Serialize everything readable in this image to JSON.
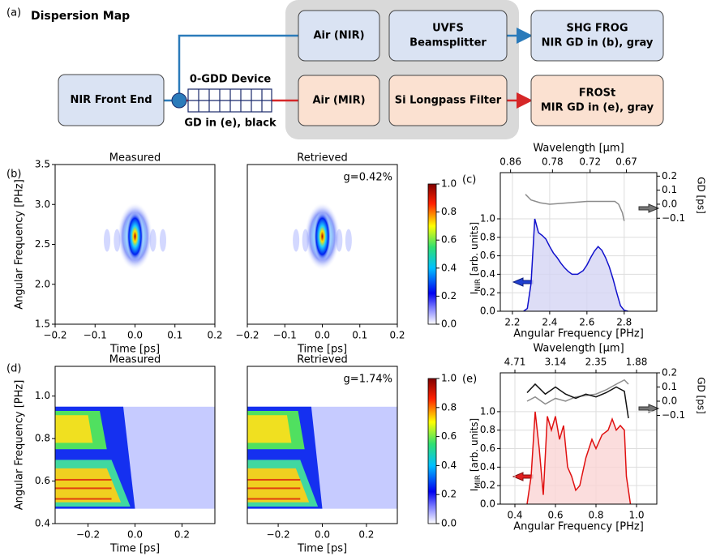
{
  "figure_label": "(a)",
  "title": "Dispersion Map",
  "diagram": {
    "nodes": [
      {
        "label": [
          "NIR Front End"
        ]
      },
      {
        "label": [
          "Air (NIR)"
        ]
      },
      {
        "label": [
          "UVFS",
          "Beamsplitter"
        ]
      },
      {
        "label": [
          "SHG FROG",
          "NIR GD in (b), gray"
        ]
      },
      {
        "label": [
          "Air (MIR)"
        ]
      },
      {
        "label": [
          "Si Longpass Filter"
        ]
      },
      {
        "label": [
          "FROSt",
          "MIR GD in (e), gray"
        ]
      }
    ],
    "device": {
      "label": "0-GDD Device",
      "caption": "GD in (e), black"
    }
  },
  "chart_data": [
    {
      "type": "heatmap",
      "panel": "(b)",
      "title": "Measured",
      "xlabel": "Time [ps]",
      "ylabel": "Angular Frequency [PHz]",
      "xlim": [
        -0.2,
        0.2
      ],
      "xticks": [
        {
          "value": -0.2,
          "label": "−0.2"
        },
        {
          "value": -0.1,
          "label": "−0.1"
        },
        {
          "value": 0,
          "label": "0.0"
        },
        0.1,
        0.2
      ],
      "ylim": [
        1.5,
        3.5
      ],
      "yticks": [
        1.5,
        {
          "value": 2,
          "label": "2.0"
        },
        2.5,
        {
          "value": 3,
          "label": "3.0"
        },
        3.5
      ]
    },
    {
      "type": "heatmap",
      "title": "Retrieved",
      "annotation": "g=0.42%",
      "xlabel": "Time [ps]",
      "xlim": [
        -0.2,
        0.2
      ],
      "xticks": [
        {
          "value": -0.2,
          "label": "−0.2"
        },
        {
          "value": -0.1,
          "label": "−0.1"
        },
        {
          "value": 0,
          "label": "0.0"
        },
        0.1,
        0.2
      ],
      "ylim": [
        1.5,
        3.5
      ]
    },
    {
      "type": "colorbar",
      "lim": [
        0,
        1
      ],
      "ticks": [
        {
          "value": 0,
          "label": "0.0"
        },
        0.2,
        0.4,
        0.6,
        0.8,
        {
          "value": 1,
          "label": "1.0"
        }
      ]
    },
    {
      "type": "line",
      "panel": "(c)",
      "xlabel": "Angular Frequency [PHz]",
      "top_xlabel": "Wavelength [μm]",
      "ylabel": {
        "main": "I",
        "sub": "NIR",
        "rest": " [arb. units]"
      },
      "y2label": "GD [ps]",
      "grid": true,
      "xlim": [
        2.135,
        2.975
      ],
      "xticks": [
        2.2,
        2.4,
        2.6,
        2.8
      ],
      "top_xticks": [
        {
          "value": 2.19,
          "label": "0.86"
        },
        {
          "value": 2.415,
          "label": "0.78"
        },
        {
          "value": 2.617,
          "label": "0.72"
        },
        {
          "value": 2.812,
          "label": "0.67"
        }
      ],
      "ylim": [
        0,
        1.5
      ],
      "yticks": [
        {
          "value": 0,
          "label": "0.0"
        },
        0.2,
        0.4,
        0.6,
        0.8,
        {
          "value": 1,
          "label": "1.0"
        }
      ],
      "y2lim": [
        -0.763,
        0.225
      ],
      "y2ticks": [
        {
          "value": -0.1,
          "label": "−0.1"
        },
        {
          "value": 0,
          "label": "0.0"
        },
        0.1,
        0.2
      ],
      "series": [
        {
          "color": "#1010cc",
          "fill": "#d4d4f4",
          "x": [
            2.26,
            2.28,
            2.3,
            2.32,
            2.34,
            2.36,
            2.38,
            2.4,
            2.42,
            2.44,
            2.46,
            2.48,
            2.5,
            2.52,
            2.55,
            2.58,
            2.6,
            2.62,
            2.64,
            2.66,
            2.68,
            2.7,
            2.72,
            2.74,
            2.76,
            2.78,
            2.8,
            2.82
          ],
          "values": [
            0,
            0.03,
            0.3,
            1.0,
            0.85,
            0.82,
            0.78,
            0.7,
            0.63,
            0.58,
            0.52,
            0.47,
            0.43,
            0.4,
            0.4,
            0.44,
            0.5,
            0.58,
            0.65,
            0.7,
            0.66,
            0.58,
            0.48,
            0.35,
            0.2,
            0.06,
            0.01,
            0
          ]
        },
        {
          "color": "#8c8c8c",
          "axis": "y2",
          "x": [
            2.27,
            2.3,
            2.35,
            2.4,
            2.5,
            2.6,
            2.7,
            2.75,
            2.77,
            2.79,
            2.8
          ],
          "values": [
            0.07,
            0.03,
            0.01,
            0.0,
            0.01,
            0.02,
            0.02,
            0.02,
            0.0,
            -0.06,
            -0.12
          ]
        }
      ]
    },
    {
      "type": "heatmap",
      "panel": "(d)",
      "title": "Measured",
      "xlabel": "Time [ps]",
      "ylabel": "Angular Frequency [PHz]",
      "xlim": [
        -0.34,
        0.34
      ],
      "xticks": [
        {
          "value": -0.2,
          "label": "−0.2"
        },
        {
          "value": 0,
          "label": "0.0"
        },
        0.2
      ],
      "ylim": [
        0.4,
        1.14
      ],
      "yticks": [
        0.4,
        0.6,
        0.8,
        {
          "value": 1,
          "label": "1.0"
        }
      ]
    },
    {
      "type": "heatmap",
      "title": "Retrieved",
      "annotation": "g=1.74%",
      "xlabel": "Time [ps]",
      "xlim": [
        -0.34,
        0.34
      ],
      "xticks": [
        {
          "value": -0.2,
          "label": "−0.2"
        },
        {
          "value": 0,
          "label": "0.0"
        },
        0.2
      ],
      "ylim": [
        0.4,
        1.14
      ]
    },
    {
      "type": "colorbar",
      "lim": [
        0,
        1
      ],
      "ticks": [
        {
          "value": 0,
          "label": "0.0"
        },
        0.2,
        0.4,
        0.6,
        0.8,
        {
          "value": 1,
          "label": "1.0"
        }
      ]
    },
    {
      "type": "line",
      "panel": "(e)",
      "xlabel": "Angular Frequency [PHz]",
      "top_xlabel": "Wavelength [μm]",
      "ylabel": {
        "main": "I",
        "sub": "MIR",
        "rest": " [arb. units]"
      },
      "y2label": "GD [ps]",
      "grid": true,
      "xlim": [
        0.328,
        1.1
      ],
      "xticks": [
        0.4,
        0.6,
        0.8,
        {
          "value": 1,
          "label": "1.0"
        }
      ],
      "top_xticks": [
        {
          "value": 0.4,
          "label": "4.71"
        },
        {
          "value": 0.6,
          "label": "3.14"
        },
        {
          "value": 0.8,
          "label": "2.35"
        },
        {
          "value": 1,
          "label": "1.88"
        }
      ],
      "ylim": [
        0,
        1.42
      ],
      "yticks": [
        {
          "value": 0,
          "label": "0.0"
        },
        0.2,
        0.4,
        0.6,
        0.8,
        {
          "value": 1,
          "label": "1.0"
        }
      ],
      "y2lim": [
        -0.726,
        0.2
      ],
      "y2ticks": [
        {
          "value": -0.1,
          "label": "−0.1"
        },
        {
          "value": 0,
          "label": "0.0"
        },
        0.1,
        0.2
      ],
      "series": [
        {
          "color": "#e01010",
          "fill": "#fad4d4",
          "x": [
            0.46,
            0.48,
            0.5,
            0.52,
            0.54,
            0.56,
            0.58,
            0.6,
            0.62,
            0.64,
            0.66,
            0.68,
            0.7,
            0.72,
            0.75,
            0.78,
            0.8,
            0.83,
            0.86,
            0.88,
            0.9,
            0.92,
            0.94,
            0.95,
            0.97
          ],
          "values": [
            0,
            0.3,
            1.0,
            0.6,
            0.1,
            0.95,
            0.8,
            0.95,
            0.7,
            0.85,
            0.4,
            0.3,
            0.15,
            0.2,
            0.5,
            0.7,
            0.6,
            0.75,
            0.8,
            0.92,
            0.8,
            0.85,
            0.8,
            0.3,
            0
          ]
        },
        {
          "color": "#8c8c8c",
          "axis": "y2",
          "x": [
            0.46,
            0.5,
            0.55,
            0.6,
            0.65,
            0.7,
            0.8,
            0.85,
            0.9,
            0.94,
            0.96
          ],
          "values": [
            0.0,
            0.03,
            -0.02,
            0.02,
            0.0,
            0.03,
            0.05,
            0.08,
            0.12,
            0.15,
            0.12
          ]
        },
        {
          "color": "#111111",
          "axis": "y2",
          "x": [
            0.46,
            0.5,
            0.55,
            0.6,
            0.65,
            0.7,
            0.75,
            0.8,
            0.85,
            0.9,
            0.94,
            0.96
          ],
          "values": [
            0.06,
            0.12,
            0.05,
            0.1,
            0.05,
            0.02,
            0.05,
            0.03,
            0.06,
            0.1,
            0.07,
            -0.12
          ]
        }
      ]
    }
  ]
}
